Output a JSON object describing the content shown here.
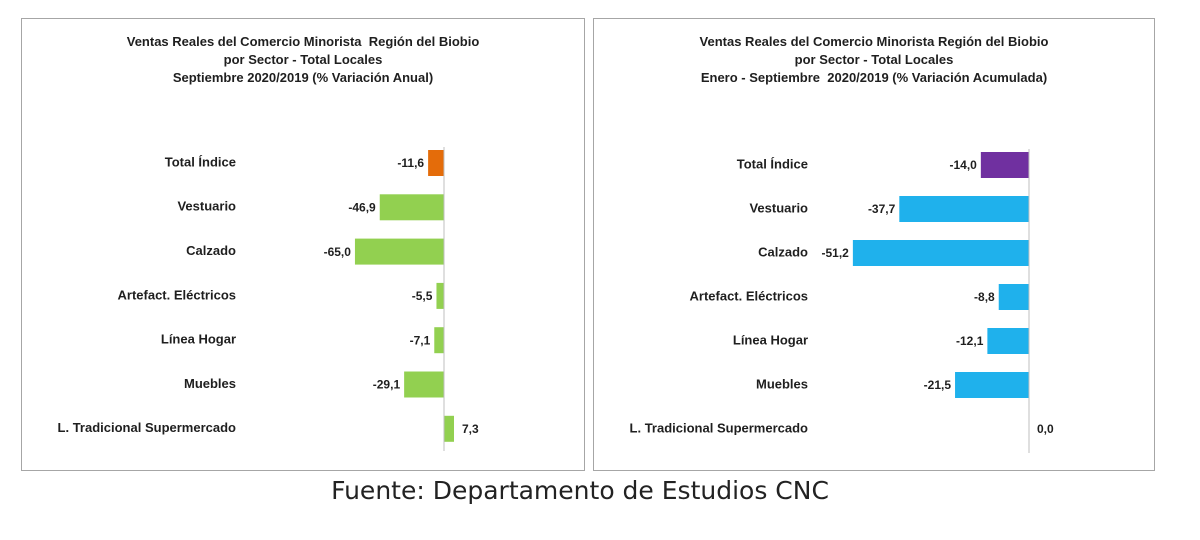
{
  "chart_data": [
    {
      "type": "bar",
      "orientation": "horizontal",
      "title_lines": [
        "Ventas Reales del Comercio Minorista  Región del Biobio",
        "por Sector - Total Locales",
        "Septiembre 2020/2019 (% Variación Anual)"
      ],
      "categories": [
        "Total Índice",
        "Vestuario",
        "Calzado",
        "Artefact. Eléctricos",
        "Línea Hogar",
        "Muebles",
        "L. Tradicional Supermercado"
      ],
      "values": [
        -11.6,
        -46.9,
        -65.0,
        -5.5,
        -7.1,
        -29.1,
        7.3
      ],
      "value_labels": [
        "-11,6",
        "-46,9",
        "-65,0",
        "-5,5",
        "-7,1",
        "-29,1",
        "7,3"
      ],
      "colors": [
        "#e46c0a",
        "#92d050",
        "#92d050",
        "#92d050",
        "#92d050",
        "#92d050",
        "#92d050"
      ],
      "xlim": [
        -70,
        10
      ],
      "xlabel": "",
      "ylabel": "",
      "grid": false,
      "legend": false
    },
    {
      "type": "bar",
      "orientation": "horizontal",
      "title_lines": [
        "Ventas Reales del Comercio Minorista Región del Biobio",
        "por Sector - Total Locales",
        "Enero - Septiembre  2020/2019 (% Variación Acumulada)"
      ],
      "categories": [
        "Total Índice",
        "Vestuario",
        "Calzado",
        "Artefact. Eléctricos",
        "Línea Hogar",
        "Muebles",
        "L. Tradicional Supermercado"
      ],
      "values": [
        -14.0,
        -37.7,
        -51.2,
        -8.8,
        -12.1,
        -21.5,
        0.0
      ],
      "value_labels": [
        "-14,0",
        "-37,7",
        "-51,2",
        "-8,8",
        "-12,1",
        "-21,5",
        "0,0"
      ],
      "colors": [
        "#7030a0",
        "#1fb1ec",
        "#1fb1ec",
        "#1fb1ec",
        "#1fb1ec",
        "#1fb1ec",
        "#1fb1ec"
      ],
      "xlim": [
        -60,
        10
      ],
      "xlabel": "",
      "ylabel": "",
      "grid": false,
      "legend": false
    }
  ],
  "source": "Fuente: Departamento de Estudios CNC"
}
